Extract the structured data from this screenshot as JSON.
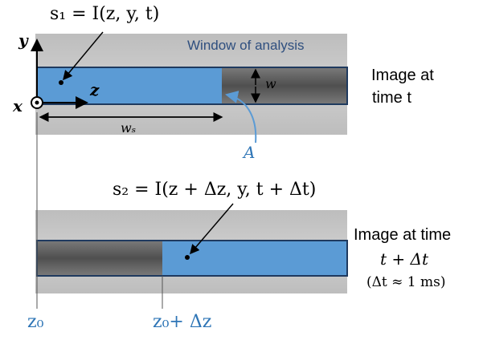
{
  "top_panel": {
    "formula": "s₁ = I(z, y, t)",
    "window_label": "Window of analysis",
    "w_label": "w",
    "ws_label": "wₛ",
    "area_label": "A",
    "z_axis": "z",
    "y_axis": "y",
    "x_axis": "x",
    "side_caption_line1": "Image at",
    "side_caption_line2": "time t"
  },
  "bottom_panel": {
    "formula": "s₂ = I(z + Δz, y, t + Δt)",
    "side_caption_line1": "Image at time",
    "side_caption_line2": "t + Δt",
    "side_caption_line3": "(Δt ≈ 1 ms)",
    "z0_label": "z₀",
    "z0dz_label": "z₀+ Δz"
  },
  "colors": {
    "window_fill": "#5b9bd5",
    "window_stroke": "#1f3a5f",
    "accent_text": "#2e75b6",
    "strip_bg": "#c4c4c4",
    "dark_band": "#5a5a5a"
  }
}
